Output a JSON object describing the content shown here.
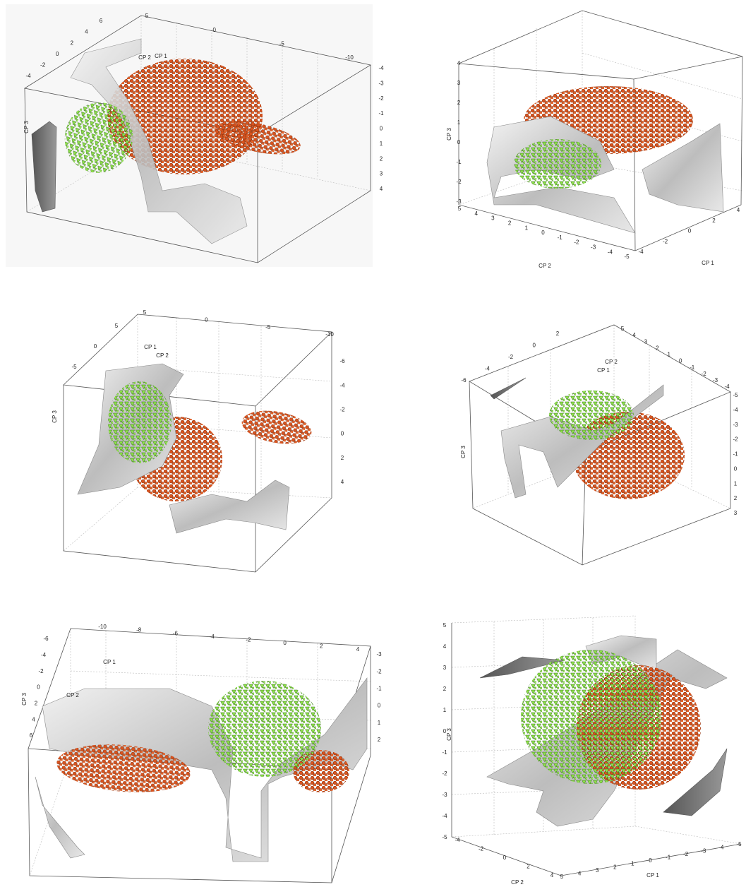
{
  "panels": [
    {
      "axes": [
        {
          "name": "CP 1",
          "ticks": [
            5,
            0,
            -5,
            -10
          ]
        },
        {
          "name": "CP 2",
          "ticks": [
            6,
            4,
            2,
            0,
            -2,
            -4
          ]
        },
        {
          "name": "CP 3",
          "ticks": [
            -4,
            -3,
            -2,
            -1,
            0,
            1,
            2,
            3,
            4
          ]
        }
      ]
    },
    {
      "axes": [
        {
          "name": "CP 1",
          "ticks": [
            -4,
            -2,
            0,
            2,
            4
          ]
        },
        {
          "name": "CP 2",
          "ticks": [
            5,
            4,
            3,
            2,
            1,
            0,
            -1,
            -2,
            -3,
            -4,
            -5
          ]
        },
        {
          "name": "CP 3",
          "ticks": [
            4,
            3,
            2,
            1,
            0,
            -1,
            -2,
            -3
          ]
        }
      ]
    },
    {
      "axes": [
        {
          "name": "CP 1",
          "ticks": [
            5,
            0,
            -5,
            -10
          ]
        },
        {
          "name": "CP 2",
          "ticks": [
            5,
            0,
            -5
          ]
        },
        {
          "name": "CP 3",
          "ticks": [
            -6,
            -4,
            -2,
            0,
            2,
            4
          ]
        }
      ]
    },
    {
      "axes": [
        {
          "name": "CP 1",
          "ticks": [
            5,
            4,
            3,
            2,
            1,
            0,
            -1,
            -2,
            -3,
            -4
          ]
        },
        {
          "name": "CP 2",
          "ticks": [
            2,
            0,
            -2,
            -4,
            -6
          ]
        },
        {
          "name": "CP 3",
          "ticks": [
            -5,
            -4,
            -3,
            -2,
            -1,
            0,
            1,
            2,
            3
          ]
        }
      ]
    },
    {
      "axes": [
        {
          "name": "CP 1",
          "ticks": [
            -10,
            -8,
            -6,
            -4,
            -2,
            0,
            2,
            4
          ]
        },
        {
          "name": "CP 2",
          "ticks": [
            -6,
            -4,
            -2,
            0,
            2,
            4,
            6
          ]
        },
        {
          "name": "CP 3",
          "ticks": [
            -3,
            -2,
            -1,
            0,
            1,
            2
          ]
        }
      ]
    },
    {
      "axes": [
        {
          "name": "CP 1",
          "ticks": [
            5,
            4,
            3,
            2,
            1,
            0,
            -1,
            -2,
            -3,
            -4,
            -5
          ]
        },
        {
          "name": "CP 2",
          "ticks": [
            -4,
            -2,
            0,
            2,
            4
          ]
        },
        {
          "name": "CP 3",
          "ticks": [
            5,
            4,
            3,
            2,
            1,
            0,
            -1,
            -2,
            -3,
            -4,
            -5
          ]
        }
      ]
    }
  ]
}
